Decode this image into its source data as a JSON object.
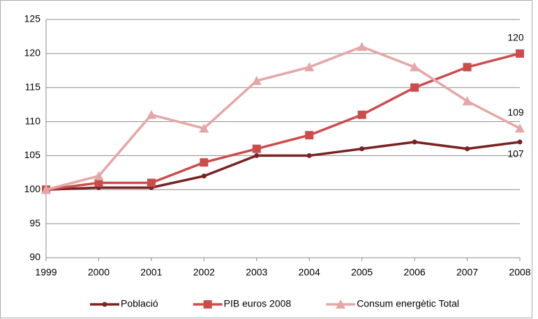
{
  "chart_data": {
    "type": "line",
    "categories": [
      "1999",
      "2000",
      "2001",
      "2002",
      "2003",
      "2004",
      "2005",
      "2006",
      "2007",
      "2008"
    ],
    "series": [
      {
        "name": "Població",
        "color": "#7a2222",
        "marker": "circle",
        "label_last": true,
        "values": [
          100,
          100.3,
          100.3,
          102,
          105,
          105,
          106,
          107,
          106,
          107
        ]
      },
      {
        "name": "PIB euros 2008",
        "color": "#cc4c4c",
        "marker": "square",
        "label_last": true,
        "values": [
          100,
          101,
          101,
          104,
          106,
          108,
          111,
          115,
          118,
          120
        ]
      },
      {
        "name": "Consum energètic Total",
        "color": "#e6a6a6",
        "marker": "triangle",
        "label_last": true,
        "values": [
          100,
          102,
          111,
          109,
          116,
          118,
          121,
          118,
          113,
          109
        ]
      }
    ],
    "ylim": [
      90,
      125
    ],
    "yticks": [
      90,
      95,
      100,
      105,
      110,
      115,
      120,
      125
    ],
    "grid": true,
    "legend": "bottom"
  }
}
